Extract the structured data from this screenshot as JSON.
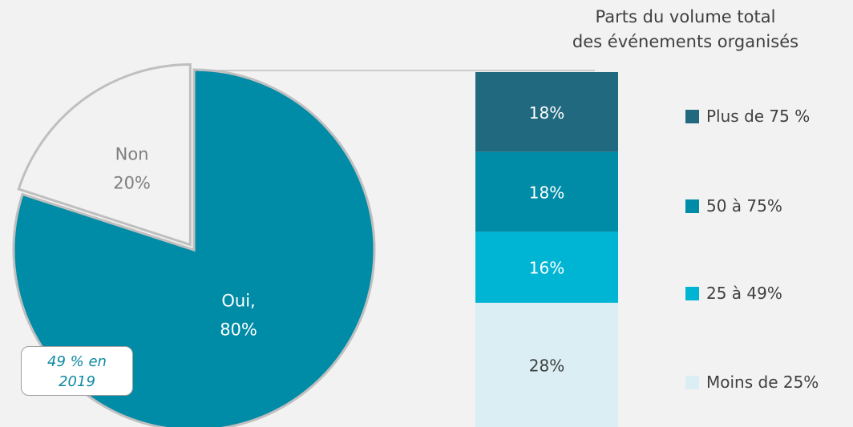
{
  "chart_data": [
    {
      "type": "pie",
      "slices": [
        {
          "label": "Oui,",
          "value_label": "80%",
          "value": 80,
          "color": "#008ba6"
        },
        {
          "label": "Non",
          "value_label": "20%",
          "value": 20,
          "color": "#f2f2f2"
        }
      ],
      "callout": {
        "line1": "49 % en",
        "line2": "2019"
      }
    },
    {
      "type": "bar",
      "stacked": true,
      "title_line1": "Parts du volume total",
      "title_line2": "des événements organisés",
      "segments": [
        {
          "name": "Plus de 75 %",
          "value": 18,
          "label": "18%",
          "color": "#21697f"
        },
        {
          "name": "50 à 75%",
          "value": 18,
          "label": "18%",
          "color": "#008ba6"
        },
        {
          "name": "25 à 49%",
          "value": 16,
          "label": "16%",
          "color": "#00b4d4"
        },
        {
          "name": "Moins de 25%",
          "value": 28,
          "label": "28%",
          "color": "#daeef4"
        }
      ]
    }
  ]
}
